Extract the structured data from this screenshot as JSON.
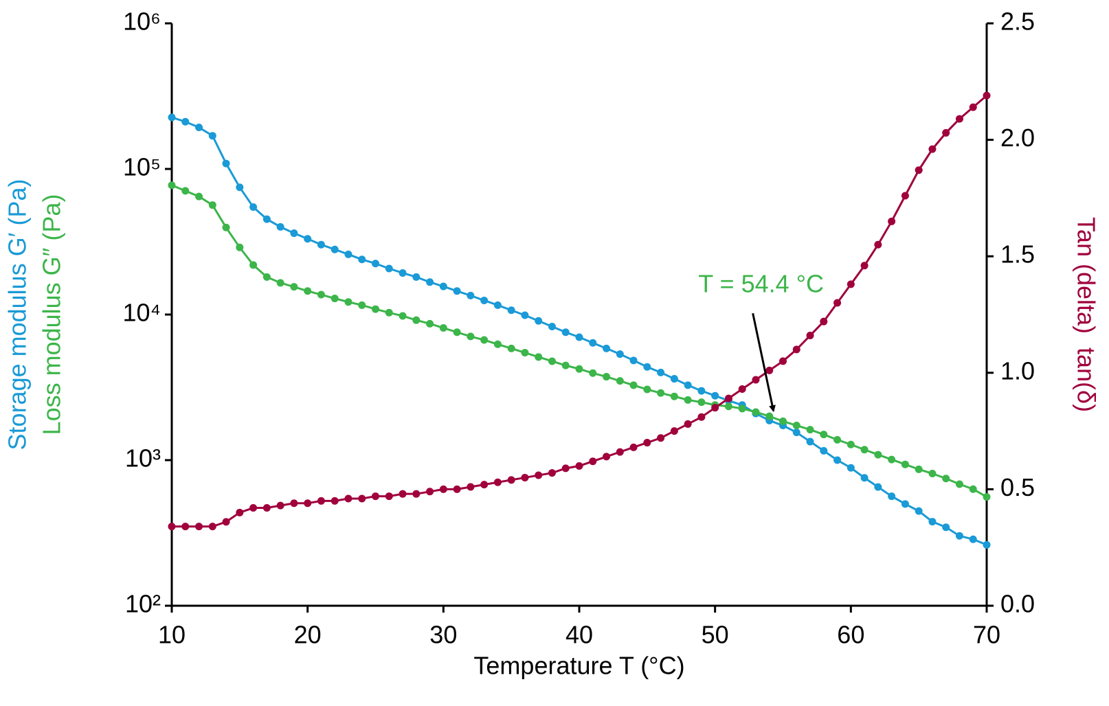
{
  "chart_data": {
    "type": "line",
    "x_label": "Temperature T (°C)",
    "y_labels": [
      {
        "text": "Storage modulus G′ (Pa)",
        "color": "#1a9ad6"
      },
      {
        "text": "Loss modulus G″ (Pa)",
        "color": "#3cb54a"
      }
    ],
    "y2_label": "Tan (delta)  tan(δ)",
    "y2_label_color": "#a0003c",
    "x": [
      10,
      11,
      12,
      13,
      14,
      15,
      16,
      17,
      18,
      19,
      20,
      21,
      22,
      23,
      24,
      25,
      26,
      27,
      28,
      29,
      30,
      31,
      32,
      33,
      34,
      35,
      36,
      37,
      38,
      39,
      40,
      41,
      42,
      43,
      44,
      45,
      46,
      47,
      48,
      49,
      50,
      51,
      52,
      53,
      54,
      55,
      56,
      57,
      58,
      59,
      60,
      61,
      62,
      63,
      64,
      65,
      66,
      67,
      68,
      69,
      70
    ],
    "xlim": [
      10,
      70
    ],
    "xticks": [
      10,
      20,
      30,
      40,
      50,
      60,
      70
    ],
    "ylim": [
      100,
      1000000
    ],
    "y_log": true,
    "yticks": [
      {
        "value": 100,
        "label": "10²"
      },
      {
        "value": 1000,
        "label": "10³"
      },
      {
        "value": 10000,
        "label": "10⁴"
      },
      {
        "value": 100000,
        "label": "10⁵"
      },
      {
        "value": 1000000,
        "label": "10⁶"
      }
    ],
    "y2lim": [
      0,
      2.5
    ],
    "y2ticks": [
      {
        "value": 0,
        "label": "0.0"
      },
      0.5,
      {
        "value": 1,
        "label": "1.0"
      },
      1.5,
      {
        "value": 2,
        "label": "2.0"
      },
      2.5
    ],
    "series": [
      {
        "name": "G′",
        "color": "#1a9ad6",
        "values": [
          226000,
          211000,
          193000,
          169000,
          109000,
          74800,
          54700,
          45200,
          40000,
          36200,
          33100,
          30200,
          28000,
          25900,
          23900,
          22400,
          20700,
          19300,
          18100,
          16700,
          15600,
          14500,
          13500,
          12500,
          11600,
          10700,
          9890,
          9040,
          8270,
          7560,
          6990,
          6390,
          5850,
          5350,
          4840,
          4370,
          4000,
          3620,
          3270,
          2990,
          2770,
          2560,
          2390,
          2090,
          1870,
          1730,
          1550,
          1340,
          1160,
          1000,
          885,
          756,
          654,
          565,
          500,
          447,
          378,
          346,
          302,
          286,
          262
        ]
      },
      {
        "name": "G″",
        "color": "#3cb54a",
        "values": [
          77300,
          70700,
          64700,
          56500,
          39600,
          28900,
          21900,
          18100,
          16500,
          15500,
          14500,
          13700,
          12900,
          12200,
          11600,
          10900,
          10300,
          9780,
          9150,
          8650,
          8090,
          7560,
          7070,
          6690,
          6250,
          5850,
          5470,
          5110,
          4780,
          4470,
          4230,
          3960,
          3740,
          3500,
          3270,
          3060,
          2890,
          2740,
          2590,
          2500,
          2390,
          2340,
          2260,
          2140,
          2000,
          1850,
          1730,
          1620,
          1500,
          1380,
          1280,
          1180,
          1090,
          1010,
          935,
          865,
          809,
          748,
          684,
          632,
          559
        ]
      },
      {
        "name": "tan(δ)",
        "color": "#a0003c",
        "axis": "y2",
        "values": [
          0.34,
          0.34,
          0.34,
          0.34,
          0.36,
          0.4,
          0.42,
          0.42,
          0.43,
          0.44,
          0.44,
          0.45,
          0.45,
          0.46,
          0.46,
          0.47,
          0.47,
          0.48,
          0.48,
          0.49,
          0.5,
          0.5,
          0.51,
          0.52,
          0.53,
          0.54,
          0.55,
          0.56,
          0.57,
          0.59,
          0.6,
          0.62,
          0.64,
          0.66,
          0.68,
          0.7,
          0.72,
          0.75,
          0.78,
          0.81,
          0.85,
          0.89,
          0.93,
          0.97,
          1.01,
          1.05,
          1.1,
          1.16,
          1.22,
          1.3,
          1.38,
          1.46,
          1.55,
          1.65,
          1.76,
          1.87,
          1.96,
          2.03,
          2.09,
          2.14,
          2.19
        ]
      }
    ],
    "annotation": {
      "text": "T = 54.4 °C",
      "color": "#3cb54a",
      "x": 54.4,
      "y": 2000
    }
  }
}
